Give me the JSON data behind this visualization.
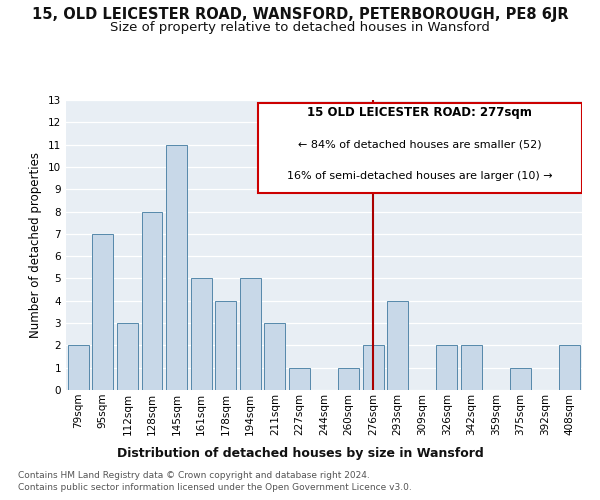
{
  "title": "15, OLD LEICESTER ROAD, WANSFORD, PETERBOROUGH, PE8 6JR",
  "subtitle": "Size of property relative to detached houses in Wansford",
  "xlabel": "Distribution of detached houses by size in Wansford",
  "ylabel": "Number of detached properties",
  "categories": [
    "79sqm",
    "95sqm",
    "112sqm",
    "128sqm",
    "145sqm",
    "161sqm",
    "178sqm",
    "194sqm",
    "211sqm",
    "227sqm",
    "244sqm",
    "260sqm",
    "276sqm",
    "293sqm",
    "309sqm",
    "326sqm",
    "342sqm",
    "359sqm",
    "375sqm",
    "392sqm",
    "408sqm"
  ],
  "values": [
    2,
    7,
    3,
    8,
    11,
    5,
    4,
    5,
    3,
    1,
    0,
    1,
    2,
    4,
    0,
    2,
    2,
    0,
    1,
    0,
    2
  ],
  "bar_color": "#c8d8e8",
  "bar_edge_color": "#5588aa",
  "vline_x_index": 12,
  "vline_color": "#aa0000",
  "annotation_title": "15 OLD LEICESTER ROAD: 277sqm",
  "annotation_line1": "← 84% of detached houses are smaller (52)",
  "annotation_line2": "16% of semi-detached houses are larger (10) →",
  "annotation_box_color": "#ffffff",
  "annotation_box_edge": "#cc0000",
  "ylim": [
    0,
    13
  ],
  "yticks": [
    0,
    1,
    2,
    3,
    4,
    5,
    6,
    7,
    8,
    9,
    10,
    11,
    12,
    13
  ],
  "plot_bg_color": "#e8eef4",
  "footer1": "Contains HM Land Registry data © Crown copyright and database right 2024.",
  "footer2": "Contains public sector information licensed under the Open Government Licence v3.0.",
  "title_fontsize": 10.5,
  "subtitle_fontsize": 9.5,
  "xlabel_fontsize": 9,
  "ylabel_fontsize": 8.5,
  "tick_fontsize": 7.5,
  "annotation_fontsize": 8,
  "footer_fontsize": 6.5
}
